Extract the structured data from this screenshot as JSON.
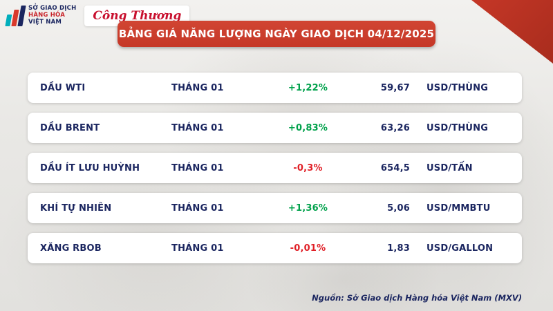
{
  "logos": {
    "mxv": {
      "line1": "SỞ GIAO DỊCH",
      "line2": "HÀNG HÓA",
      "line3": "VIỆT NAM"
    },
    "cong_thuong": "Công Thương"
  },
  "header": {
    "title": "BẢNG GIÁ NĂNG LƯỢNG NGÀY GIAO DỊCH 04/12/2025"
  },
  "chart_data": {
    "type": "table",
    "title": "BẢNG GIÁ NĂNG LƯỢNG NGÀY GIAO DỊCH 04/12/2025",
    "rows": [
      {
        "name": "DẦU WTI",
        "month": "THÁNG 01",
        "change": "+1,22%",
        "direction": "up",
        "price": "59,67",
        "unit": "USD/THÙNG"
      },
      {
        "name": "DẦU BRENT",
        "month": "THÁNG 01",
        "change": "+0,83%",
        "direction": "up",
        "price": "63,26",
        "unit": "USD/THÙNG"
      },
      {
        "name": "DẦU ÍT LƯU HUỲNH",
        "month": "THÁNG 01",
        "change": "-0,3%",
        "direction": "down",
        "price": "654,5",
        "unit": "USD/TẤN"
      },
      {
        "name": "KHÍ TỰ NHIÊN",
        "month": "THÁNG 01",
        "change": "+1,36%",
        "direction": "up",
        "price": "5,06",
        "unit": "USD/MMBTU"
      },
      {
        "name": "XĂNG RBOB",
        "month": "THÁNG 01",
        "change": "-0,01%",
        "direction": "down",
        "price": "1,83",
        "unit": "USD/GALLON"
      }
    ]
  },
  "footer": {
    "source": "Nguồn: Sở Giao dịch Hàng hóa Việt Nam (MXV)"
  },
  "colors": {
    "banner_red": "#c53727",
    "navy": "#1b2660",
    "up": "#00a14b",
    "down": "#e01f26"
  }
}
